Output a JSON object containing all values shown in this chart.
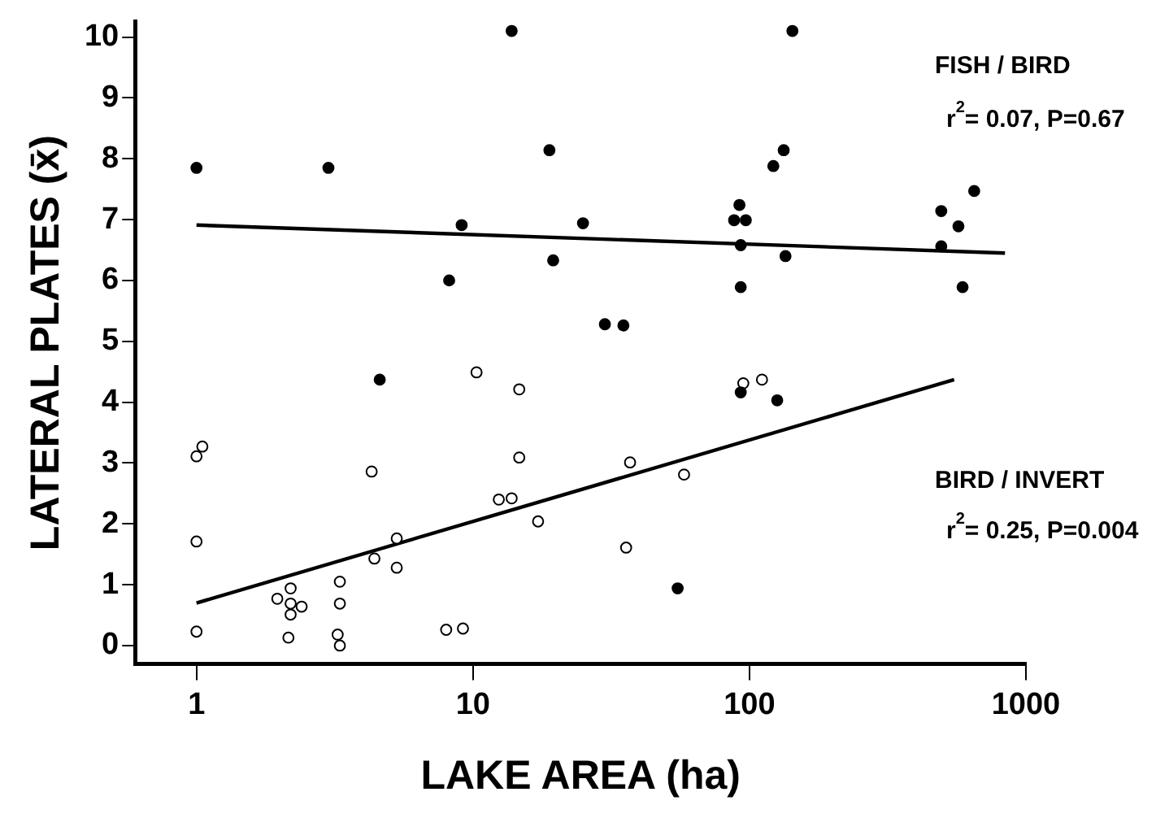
{
  "chart_data": {
    "type": "scatter",
    "xlabel": "LAKE AREA (ha)",
    "ylabel": "LATERAL PLATES (x̄)",
    "log": "x",
    "grid": false,
    "legend": false,
    "marker": "circle",
    "xlim": [
      0.6,
      1000
    ],
    "xticks": [
      1,
      10,
      100,
      1000
    ],
    "ylim": [
      -0.3,
      10.25
    ],
    "yticks": [
      0,
      1,
      2,
      3,
      4,
      5,
      6,
      7,
      8,
      9,
      10
    ],
    "series": [
      {
        "color": "#000000",
        "x": [
          1,
          3,
          8.2,
          13.8,
          143,
          18.9,
          133,
          122,
          92,
          88,
          97,
          9.1,
          25,
          93,
          19.5,
          135,
          93,
          30,
          35,
          650,
          494,
          570,
          494,
          590,
          4.6,
          93,
          126,
          55
        ],
        "values": [
          7.85,
          7.85,
          6.0,
          10.1,
          10.1,
          8.14,
          8.14,
          7.88,
          7.24,
          6.99,
          6.99,
          6.91,
          6.94,
          6.58,
          6.33,
          6.4,
          5.89,
          5.28,
          5.26,
          7.47,
          7.14,
          6.89,
          6.56,
          5.89,
          4.37,
          4.16,
          4.03,
          0.94
        ]
      },
      {
        "color": "#ffffff",
        "x": [
          1.05,
          1,
          4.3,
          1,
          5.3,
          4.4,
          5.3,
          3.3,
          2.19,
          1.96,
          2.19,
          2.4,
          2.19,
          3.3,
          1,
          2.15,
          3.24,
          3.3,
          8,
          9.2,
          10.3,
          14.7,
          95,
          111,
          14.7,
          37,
          58,
          12.4,
          13.8,
          17.2,
          35.8
        ],
        "values": [
          3.27,
          3.11,
          2.86,
          1.71,
          1.76,
          1.43,
          1.28,
          1.05,
          0.94,
          0.77,
          0.69,
          0.64,
          0.51,
          0.69,
          0.23,
          0.13,
          0.18,
          0,
          0.26,
          0.28,
          4.49,
          4.21,
          4.31,
          4.37,
          3.09,
          3.01,
          2.81,
          2.4,
          2.42,
          2.04,
          1.61
        ]
      },
      {
        "type": "line",
        "marker": "none",
        "color": "#000000",
        "x": [
          1,
          840
        ],
        "values": [
          6.91,
          6.45
        ]
      },
      {
        "type": "line",
        "marker": "none",
        "color": "#000000",
        "x": [
          1,
          550
        ],
        "values": [
          0.7,
          4.37
        ]
      }
    ],
    "annotations": [
      "FISH / BIRD",
      "r$^{2}$= 0.07, P=0.67",
      "BIRD / INVERT",
      "r$^{2}$= 0.25, P=0.004"
    ]
  }
}
